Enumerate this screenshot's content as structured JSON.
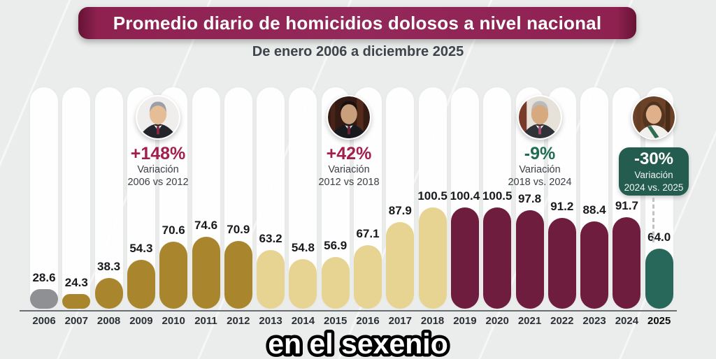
{
  "page": {
    "title": "Promedio diario de homicidios dolosos a nivel nacional",
    "subtitle": "De enero 2006 a diciembre 2025",
    "caption": "en el sexenio"
  },
  "colors": {
    "background": "#ebedec",
    "banner_bg": "#8e2150",
    "axis": "#6a6d71",
    "first_year_bar": "#8e9093",
    "calderon_era_bars": "#a9862d",
    "pena_era_bars": "#e7d493",
    "amlo_era_bars": "#6e1d3f",
    "sheinbaum_era_bar": "#27685a",
    "increase_text": "#a21e4d",
    "decrease_text": "#1e6d52",
    "badge_bg": "#245d4f"
  },
  "portraits": [
    {
      "icon": "calderon-portrait"
    },
    {
      "icon": "pena-nieto-portrait"
    },
    {
      "icon": "amlo-portrait"
    },
    {
      "icon": "sheinbaum-portrait"
    }
  ],
  "annotations": [
    {
      "pct": "+148%",
      "line1": "Variación",
      "line2": "2006 vs 2012"
    },
    {
      "pct": "+42%",
      "line1": "Variación",
      "line2": "2012 vs 2018"
    },
    {
      "pct": "-9%",
      "line1": "Variación",
      "line2": "2018 vs. 2024"
    },
    {
      "pct": "-30%",
      "line1": "Variación",
      "line2": "2024 vs. 2025"
    }
  ],
  "chart_data": {
    "type": "bar",
    "title": "Promedio diario de homicidios dolosos a nivel nacional",
    "subtitle": "De enero 2006 a diciembre 2025",
    "xlabel": "",
    "ylabel": "",
    "ylim": [
      0,
      110
    ],
    "grid": false,
    "legend": "none",
    "categories": [
      "2006",
      "2007",
      "2008",
      "2009",
      "2010",
      "2011",
      "2012",
      "2013",
      "2014",
      "2015",
      "2016",
      "2017",
      "2018",
      "2019",
      "2020",
      "2021",
      "2022",
      "2023",
      "2024",
      "2025"
    ],
    "values": [
      28.6,
      24.3,
      38.3,
      54.3,
      70.6,
      74.6,
      70.9,
      63.2,
      54.8,
      56.9,
      67.1,
      87.9,
      100.5,
      100.4,
      100.5,
      97.8,
      91.2,
      88.4,
      91.7,
      64.0
    ],
    "points": [
      {
        "year": "2006",
        "value": 28.6,
        "color": "#8e9093"
      },
      {
        "year": "2007",
        "value": 24.3,
        "color": "#a9862d"
      },
      {
        "year": "2008",
        "value": 38.3,
        "color": "#a9862d"
      },
      {
        "year": "2009",
        "value": 54.3,
        "color": "#a9862d"
      },
      {
        "year": "2010",
        "value": 70.6,
        "color": "#a9862d"
      },
      {
        "year": "2011",
        "value": 74.6,
        "color": "#a9862d"
      },
      {
        "year": "2012",
        "value": 70.9,
        "color": "#a9862d"
      },
      {
        "year": "2013",
        "value": 63.2,
        "color": "#e7d493"
      },
      {
        "year": "2014",
        "value": 54.8,
        "color": "#e7d493"
      },
      {
        "year": "2015",
        "value": 56.9,
        "color": "#e7d493"
      },
      {
        "year": "2016",
        "value": 67.1,
        "color": "#e7d493"
      },
      {
        "year": "2017",
        "value": 87.9,
        "color": "#e7d493"
      },
      {
        "year": "2018",
        "value": 100.5,
        "color": "#e7d493"
      },
      {
        "year": "2019",
        "value": 100.4,
        "color": "#6e1d3f"
      },
      {
        "year": "2020",
        "value": 100.5,
        "color": "#6e1d3f"
      },
      {
        "year": "2021",
        "value": 97.8,
        "color": "#6e1d3f"
      },
      {
        "year": "2022",
        "value": 91.2,
        "color": "#6e1d3f"
      },
      {
        "year": "2023",
        "value": 88.4,
        "color": "#6e1d3f"
      },
      {
        "year": "2024",
        "value": 91.7,
        "color": "#6e1d3f"
      },
      {
        "year": "2025",
        "value": 64.0,
        "color": "#27685a",
        "emphasis": true
      }
    ],
    "annotations": [
      {
        "text": "+148% Variación 2006 vs 2012",
        "color": "#a21e4d"
      },
      {
        "text": "+42% Variación 2012 vs 2018",
        "color": "#a21e4d"
      },
      {
        "text": "-9% Variación 2018 vs. 2024",
        "color": "#1e6d52"
      },
      {
        "text": "-30% Variación 2024 vs. 2025",
        "color": "#ffffff",
        "badge_bg": "#245d4f"
      }
    ]
  }
}
